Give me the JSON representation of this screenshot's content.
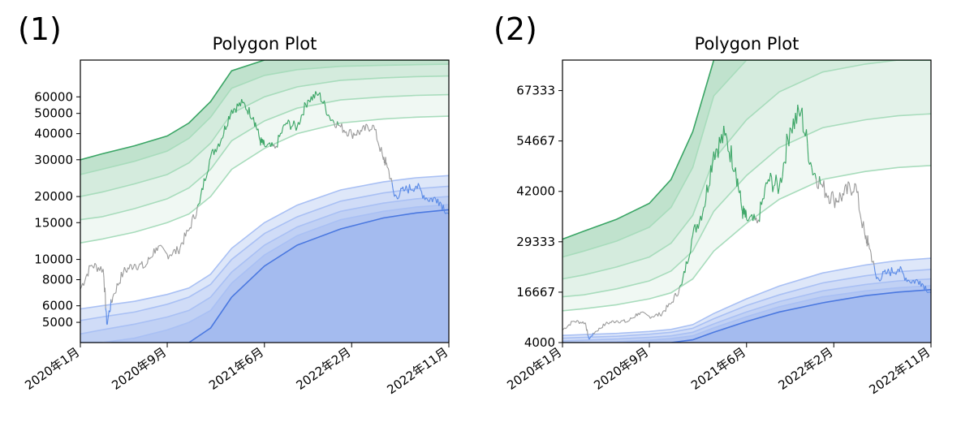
{
  "panels": [
    {
      "label": "(1)"
    },
    {
      "label": "(2)"
    }
  ],
  "colors": {
    "green_dark": "#3aa565",
    "green_light": "#a8dcbc",
    "blue_dark": "#4a78e0",
    "blue_light": "#a9c0f4",
    "price_grey": "#9a9a9a",
    "price_green": "#3aa565",
    "price_blue": "#5a8ae6"
  },
  "chart_data": [
    {
      "type": "area",
      "title": "Polygon Plot",
      "yscale": "log",
      "ylim": [
        4000,
        90000
      ],
      "yticks": [
        5000,
        6000,
        8000,
        10000,
        15000,
        20000,
        30000,
        40000,
        50000,
        60000
      ],
      "ytick_labels": [
        "5000",
        "6000",
        "8000",
        "10000",
        "15000",
        "20000",
        "30000",
        "40000",
        "50000",
        "60000"
      ],
      "xlim": [
        "2020-01-01",
        "2022-11-01"
      ],
      "xtick_dates": [
        "2020-01-01",
        "2020-09-01",
        "2021-06-01",
        "2022-02-01",
        "2022-11-01"
      ],
      "xtick_labels": [
        "2020年1月",
        "2020年9月",
        "2021年6月",
        "2022年2月",
        "2022年11月"
      ],
      "grid": false,
      "green_bands": {
        "dates": [
          "2020-01-01",
          "2020-03-01",
          "2020-06-01",
          "2020-09-01",
          "2020-11-01",
          "2021-01-01",
          "2021-03-01",
          "2021-06-01",
          "2021-09-01",
          "2022-01-01",
          "2022-05-01",
          "2022-08-01",
          "2022-11-01"
        ],
        "levels": [
          [
            12000,
            12500,
            13500,
            15000,
            16500,
            20000,
            27000,
            34000,
            40000,
            45000,
            47000,
            48000,
            48500
          ],
          [
            15500,
            16000,
            17500,
            19500,
            22000,
            27000,
            37000,
            46000,
            53000,
            58000,
            60000,
            61000,
            61500
          ],
          [
            20000,
            21000,
            23000,
            25500,
            29000,
            36000,
            50000,
            60000,
            67000,
            72000,
            74000,
            75000,
            75500
          ],
          [
            25500,
            27000,
            29500,
            33000,
            38000,
            48000,
            66000,
            76000,
            81000,
            84000,
            85000,
            85500,
            86000
          ],
          [
            30000,
            32000,
            35000,
            39000,
            45000,
            57000,
            80000,
            90000,
            90000,
            90000,
            90000,
            90000,
            90000
          ]
        ]
      },
      "blue_bands": {
        "dates": [
          "2020-01-01",
          "2020-03-01",
          "2020-06-01",
          "2020-09-01",
          "2020-11-01",
          "2021-01-01",
          "2021-03-01",
          "2021-06-01",
          "2021-09-01",
          "2022-01-01",
          "2022-05-01",
          "2022-08-01",
          "2022-11-01"
        ],
        "levels": [
          [
            4000,
            4000,
            4000,
            4000,
            4000,
            4700,
            6600,
            9300,
            11700,
            14000,
            15800,
            16700,
            17300
          ],
          [
            4000,
            4000,
            4200,
            4600,
            5000,
            5700,
            7700,
            10500,
            13000,
            15500,
            17000,
            17800,
            18300
          ],
          [
            4400,
            4600,
            4900,
            5300,
            5700,
            6600,
            8700,
            11700,
            14300,
            17000,
            18600,
            19500,
            20000
          ],
          [
            5100,
            5300,
            5600,
            6100,
            6600,
            7600,
            10000,
            13300,
            16000,
            19000,
            20800,
            21800,
            22400
          ],
          [
            5800,
            6000,
            6300,
            6800,
            7300,
            8500,
            11300,
            15000,
            18200,
            21500,
            23500,
            24600,
            25200
          ]
        ]
      },
      "price": {
        "dates": [
          "2020-01-01",
          "2020-02-01",
          "2020-03-05",
          "2020-03-15",
          "2020-04-01",
          "2020-05-01",
          "2020-06-01",
          "2020-07-01",
          "2020-08-01",
          "2020-09-01",
          "2020-10-01",
          "2020-11-01",
          "2020-12-01",
          "2021-01-01",
          "2021-02-01",
          "2021-03-01",
          "2021-04-01",
          "2021-05-01",
          "2021-05-20",
          "2021-06-01",
          "2021-07-01",
          "2021-08-01",
          "2021-09-01",
          "2021-10-01",
          "2021-11-01",
          "2021-12-01",
          "2022-01-01",
          "2022-02-01",
          "2022-03-01",
          "2022-04-01",
          "2022-05-01",
          "2022-05-10",
          "2022-06-01",
          "2022-07-01",
          "2022-08-01",
          "2022-09-01",
          "2022-10-01",
          "2022-11-01"
        ],
        "values": [
          7200,
          9400,
          9000,
          4900,
          6600,
          8700,
          9500,
          9200,
          11400,
          10600,
          11000,
          13800,
          18500,
          31000,
          38000,
          52000,
          56000,
          48000,
          37000,
          35000,
          34000,
          45000,
          43000,
          58000,
          62000,
          48000,
          43000,
          40000,
          41000,
          44000,
          30000,
          29000,
          20000,
          21500,
          22500,
          19500,
          19500,
          16500
        ]
      }
    },
    {
      "type": "area",
      "title": "Polygon Plot",
      "yscale": "linear",
      "ylim": [
        4000,
        75000
      ],
      "yticks": [
        4000,
        16667,
        29333,
        42000,
        54667,
        67333
      ],
      "ytick_labels": [
        "4000",
        "16667",
        "29333",
        "42000",
        "54667",
        "67333"
      ],
      "xlim": [
        "2020-01-01",
        "2022-11-01"
      ],
      "xtick_dates": [
        "2020-01-01",
        "2020-09-01",
        "2021-06-01",
        "2022-02-01",
        "2022-11-01"
      ],
      "xtick_labels": [
        "2020年1月",
        "2020年9月",
        "2021年6月",
        "2022年2月",
        "2022年11月"
      ],
      "grid": false,
      "green_bands": {
        "dates": [
          "2020-01-01",
          "2020-03-01",
          "2020-06-01",
          "2020-09-01",
          "2020-11-01",
          "2021-01-01",
          "2021-03-01",
          "2021-06-01",
          "2021-09-01",
          "2022-01-01",
          "2022-05-01",
          "2022-08-01",
          "2022-11-01"
        ],
        "levels": [
          [
            12000,
            12500,
            13500,
            15000,
            16500,
            20000,
            27000,
            34000,
            40000,
            45000,
            47000,
            48000,
            48500
          ],
          [
            15500,
            16000,
            17500,
            19500,
            22000,
            27000,
            37000,
            46000,
            53000,
            58000,
            60000,
            61000,
            61500
          ],
          [
            20000,
            21000,
            23000,
            25500,
            29000,
            36000,
            50000,
            60000,
            67000,
            72000,
            74000,
            75000,
            75000
          ],
          [
            25500,
            27000,
            29500,
            33000,
            38000,
            48000,
            66000,
            75000,
            75000,
            75000,
            75000,
            75000,
            75000
          ],
          [
            30000,
            32000,
            35000,
            39000,
            45000,
            57000,
            75000,
            75000,
            75000,
            75000,
            75000,
            75000,
            75000
          ]
        ]
      },
      "blue_bands": {
        "dates": [
          "2020-01-01",
          "2020-03-01",
          "2020-06-01",
          "2020-09-01",
          "2020-11-01",
          "2021-01-01",
          "2021-03-01",
          "2021-06-01",
          "2021-09-01",
          "2022-01-01",
          "2022-05-01",
          "2022-08-01",
          "2022-11-01"
        ],
        "levels": [
          [
            4000,
            4000,
            4000,
            4000,
            4000,
            4700,
            6600,
            9300,
            11700,
            14000,
            15800,
            16700,
            17300
          ],
          [
            4000,
            4000,
            4200,
            4600,
            5000,
            5700,
            7700,
            10500,
            13000,
            15500,
            17000,
            17800,
            18300
          ],
          [
            4400,
            4600,
            4900,
            5300,
            5700,
            6600,
            8700,
            11700,
            14300,
            17000,
            18600,
            19500,
            20000
          ],
          [
            5100,
            5300,
            5600,
            6100,
            6600,
            7600,
            10000,
            13300,
            16000,
            19000,
            20800,
            21800,
            22400
          ],
          [
            5800,
            6000,
            6300,
            6800,
            7300,
            8500,
            11300,
            15000,
            18200,
            21500,
            23500,
            24600,
            25200
          ]
        ]
      },
      "price": {
        "dates": [
          "2020-01-01",
          "2020-02-01",
          "2020-03-05",
          "2020-03-15",
          "2020-04-01",
          "2020-05-01",
          "2020-06-01",
          "2020-07-01",
          "2020-08-01",
          "2020-09-01",
          "2020-10-01",
          "2020-11-01",
          "2020-12-01",
          "2021-01-01",
          "2021-02-01",
          "2021-03-01",
          "2021-04-01",
          "2021-05-01",
          "2021-05-20",
          "2021-06-01",
          "2021-07-01",
          "2021-08-01",
          "2021-09-01",
          "2021-10-01",
          "2021-11-01",
          "2021-12-01",
          "2022-01-01",
          "2022-02-01",
          "2022-03-01",
          "2022-04-01",
          "2022-05-01",
          "2022-05-10",
          "2022-06-01",
          "2022-07-01",
          "2022-08-01",
          "2022-09-01",
          "2022-10-01",
          "2022-11-01"
        ],
        "values": [
          7200,
          9400,
          9000,
          4900,
          6600,
          8700,
          9500,
          9200,
          11400,
          10600,
          11000,
          13800,
          18500,
          31000,
          38000,
          52000,
          56000,
          48000,
          37000,
          35000,
          34000,
          45000,
          43000,
          58000,
          62000,
          48000,
          43000,
          40000,
          41000,
          44000,
          30000,
          29000,
          20000,
          21500,
          22500,
          19500,
          19500,
          16500
        ]
      }
    }
  ]
}
